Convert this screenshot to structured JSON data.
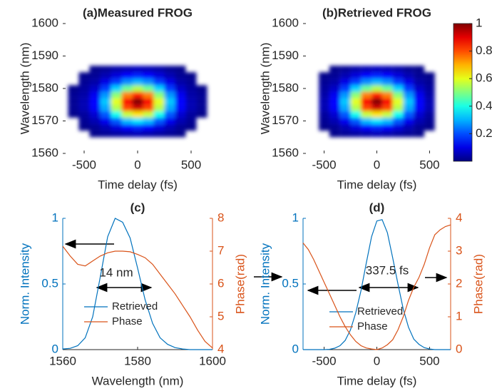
{
  "chart_data": [
    {
      "type": "heatmap",
      "title": "(a)Measured FROG",
      "xlabel": "Time delay (fs)",
      "ylabel": "Wavelength (nm)",
      "colormap": "jet",
      "x": [
        -600,
        -500,
        -400,
        -300,
        -200,
        -100,
        0,
        100,
        200,
        300,
        400,
        500,
        600
      ],
      "y": [
        1566,
        1568,
        1570,
        1572,
        1574,
        1576,
        1578,
        1580,
        1582,
        1584,
        1586
      ],
      "z": [
        [
          null,
          null,
          0.01,
          0.02,
          0.03,
          0.04,
          0.05,
          0.04,
          0.03,
          0.02,
          0.01,
          null,
          null
        ],
        [
          null,
          0.01,
          0.02,
          0.05,
          0.09,
          0.13,
          0.15,
          0.13,
          0.09,
          0.05,
          0.02,
          0.01,
          null
        ],
        [
          null,
          0.02,
          0.05,
          0.11,
          0.21,
          0.31,
          0.35,
          0.31,
          0.21,
          0.11,
          0.05,
          0.02,
          null
        ],
        [
          0.01,
          0.03,
          0.08,
          0.21,
          0.39,
          0.57,
          0.65,
          0.57,
          0.39,
          0.21,
          0.08,
          0.03,
          0.01
        ],
        [
          0.02,
          0.05,
          0.12,
          0.29,
          0.55,
          0.81,
          0.92,
          0.81,
          0.55,
          0.29,
          0.12,
          0.05,
          0.02
        ],
        [
          0.02,
          0.05,
          0.13,
          0.32,
          0.6,
          0.88,
          1,
          0.88,
          0.6,
          0.32,
          0.13,
          0.05,
          0.02
        ],
        [
          0.02,
          0.04,
          0.11,
          0.27,
          0.51,
          0.75,
          0.85,
          0.75,
          0.51,
          0.27,
          0.11,
          0.04,
          0.02
        ],
        [
          0.01,
          0.03,
          0.07,
          0.18,
          0.33,
          0.48,
          0.55,
          0.48,
          0.33,
          0.18,
          0.07,
          0.03,
          0.01
        ],
        [
          null,
          0.02,
          0.04,
          0.1,
          0.18,
          0.26,
          0.3,
          0.26,
          0.18,
          0.1,
          0.04,
          0.02,
          null
        ],
        [
          null,
          0.01,
          0.02,
          0.05,
          0.09,
          0.13,
          0.15,
          0.13,
          0.09,
          0.05,
          0.02,
          0.01,
          null
        ],
        [
          null,
          null,
          0.01,
          0.02,
          0.04,
          0.05,
          0.06,
          0.05,
          0.04,
          0.02,
          0.01,
          null,
          null
        ]
      ],
      "xlim": [
        -700,
        700
      ],
      "ylim": [
        1560,
        1600
      ],
      "xticks": [
        -500,
        0,
        500
      ],
      "yticks": [
        1560,
        1570,
        1580,
        1590,
        1600
      ],
      "clim": [
        0,
        1
      ]
    },
    {
      "type": "heatmap",
      "title": "(b)Retrieved FROG",
      "xlabel": "Time delay (fs)",
      "ylabel": "Wavelength (nm)",
      "colormap": "jet",
      "x": [
        -600,
        -500,
        -400,
        -300,
        -200,
        -100,
        0,
        100,
        200,
        300,
        400,
        500,
        600
      ],
      "y": [
        1566,
        1568,
        1570,
        1572,
        1574,
        1576,
        1578,
        1580,
        1582,
        1584,
        1586
      ],
      "z": [
        [
          null,
          null,
          0.01,
          0.02,
          0.03,
          0.04,
          0.05,
          0.04,
          0.03,
          0.02,
          0.01,
          null,
          null
        ],
        [
          null,
          0.01,
          0.02,
          0.05,
          0.09,
          0.13,
          0.15,
          0.13,
          0.09,
          0.05,
          0.02,
          0.01,
          null
        ],
        [
          null,
          0.02,
          0.05,
          0.11,
          0.21,
          0.31,
          0.35,
          0.31,
          0.21,
          0.11,
          0.05,
          0.02,
          null
        ],
        [
          null,
          0.03,
          0.08,
          0.21,
          0.39,
          0.57,
          0.65,
          0.57,
          0.39,
          0.21,
          0.08,
          0.03,
          null
        ],
        [
          null,
          0.05,
          0.12,
          0.29,
          0.55,
          0.81,
          0.92,
          0.81,
          0.55,
          0.29,
          0.12,
          0.05,
          null
        ],
        [
          null,
          0.05,
          0.13,
          0.32,
          0.6,
          0.88,
          1,
          0.88,
          0.6,
          0.32,
          0.13,
          0.05,
          null
        ],
        [
          null,
          0.04,
          0.11,
          0.27,
          0.51,
          0.75,
          0.85,
          0.75,
          0.51,
          0.27,
          0.11,
          0.04,
          null
        ],
        [
          null,
          0.03,
          0.07,
          0.18,
          0.33,
          0.48,
          0.55,
          0.48,
          0.33,
          0.18,
          0.07,
          0.03,
          null
        ],
        [
          null,
          0.02,
          0.04,
          0.1,
          0.18,
          0.26,
          0.3,
          0.26,
          0.18,
          0.1,
          0.04,
          0.02,
          null
        ],
        [
          null,
          0.01,
          0.02,
          0.05,
          0.09,
          0.13,
          0.15,
          0.13,
          0.09,
          0.05,
          0.02,
          0.01,
          null
        ],
        [
          null,
          null,
          0.01,
          0.02,
          0.04,
          0.05,
          0.06,
          0.05,
          0.04,
          0.02,
          0.01,
          null,
          null
        ]
      ],
      "xlim": [
        -700,
        700
      ],
      "ylim": [
        1560,
        1600
      ],
      "xticks": [
        -500,
        0,
        500
      ],
      "yticks": [
        1560,
        1570,
        1580,
        1590,
        1600
      ],
      "clim": [
        0,
        1
      ],
      "colorbar": {
        "ticks": [
          0.2,
          0.4,
          0.6,
          0.8,
          1
        ]
      }
    },
    {
      "type": "line",
      "title": "(c)",
      "xlabel": "Wavelength (nm)",
      "ylabel": "Norm. Intensity",
      "y2label": "Phase(rad)",
      "x": [
        1560,
        1562,
        1564,
        1566,
        1568,
        1570,
        1572,
        1574,
        1576,
        1578,
        1580,
        1582,
        1584,
        1586,
        1588,
        1590,
        1592,
        1594,
        1596,
        1598,
        1600
      ],
      "series": [
        {
          "name": "Retrieved",
          "color": "#0072bd",
          "values": [
            0.005,
            0.01,
            0.03,
            0.09,
            0.25,
            0.55,
            0.86,
            1,
            0.97,
            0.85,
            0.62,
            0.38,
            0.2,
            0.09,
            0.04,
            0.015,
            0.005,
            0,
            0,
            0,
            0
          ]
        },
        {
          "name": "Phase",
          "color": "#d95319",
          "axis": "y2",
          "values": [
            7.15,
            6.85,
            6.6,
            6.55,
            6.7,
            6.85,
            6.95,
            7.0,
            7.0,
            6.98,
            6.9,
            6.8,
            6.6,
            6.3,
            6.0,
            5.7,
            5.35,
            5.0,
            4.6,
            4.25,
            4.05
          ]
        }
      ],
      "annotation": "14 nm",
      "xlim": [
        1560,
        1600
      ],
      "xticks": [
        1560,
        1580,
        1600
      ],
      "ylim": [
        0,
        1
      ],
      "yticks": [
        0,
        0.5,
        1
      ],
      "y2lim": [
        4,
        8
      ],
      "y2ticks": [
        4,
        5,
        6,
        7,
        8
      ]
    },
    {
      "type": "line",
      "title": "(d)",
      "xlabel": "Time delay (fs)",
      "ylabel": "Norm. Intensity",
      "y2label": "Phase(rad)",
      "x": [
        -700,
        -650,
        -600,
        -550,
        -500,
        -450,
        -400,
        -350,
        -300,
        -250,
        -200,
        -150,
        -100,
        -50,
        0,
        50,
        100,
        150,
        200,
        250,
        300,
        350,
        400,
        450,
        500,
        550,
        600,
        650,
        700
      ],
      "series": [
        {
          "name": "Retrieved",
          "color": "#0072bd",
          "values": [
            0,
            0,
            0,
            0,
            0,
            0.002,
            0.011,
            0.03,
            0.07,
            0.15,
            0.28,
            0.45,
            0.66,
            0.86,
            0.98,
            0.99,
            0.89,
            0.7,
            0.5,
            0.31,
            0.17,
            0.08,
            0.04,
            0.015,
            0.005,
            0,
            0,
            0,
            0
          ]
        },
        {
          "name": "Phase",
          "color": "#d95319",
          "axis": "y2",
          "values": [
            3.25,
            3.05,
            2.75,
            2.4,
            2.05,
            1.7,
            1.35,
            1.0,
            0.7,
            0.45,
            0.25,
            0.12,
            0.05,
            0.02,
            0.0,
            0.05,
            0.15,
            0.3,
            0.6,
            1.0,
            1.5,
            1.9,
            2.2,
            2.6,
            3.1,
            3.5,
            3.65,
            3.75,
            3.8
          ]
        }
      ],
      "annotation": "337.5 fs",
      "xlim": [
        -700,
        700
      ],
      "xticks": [
        -500,
        0,
        500
      ],
      "ylim": [
        0,
        1
      ],
      "yticks": [
        0,
        0.5,
        1
      ],
      "y2lim": [
        0,
        4
      ],
      "y2ticks": [
        0,
        1,
        2,
        3,
        4
      ]
    }
  ]
}
